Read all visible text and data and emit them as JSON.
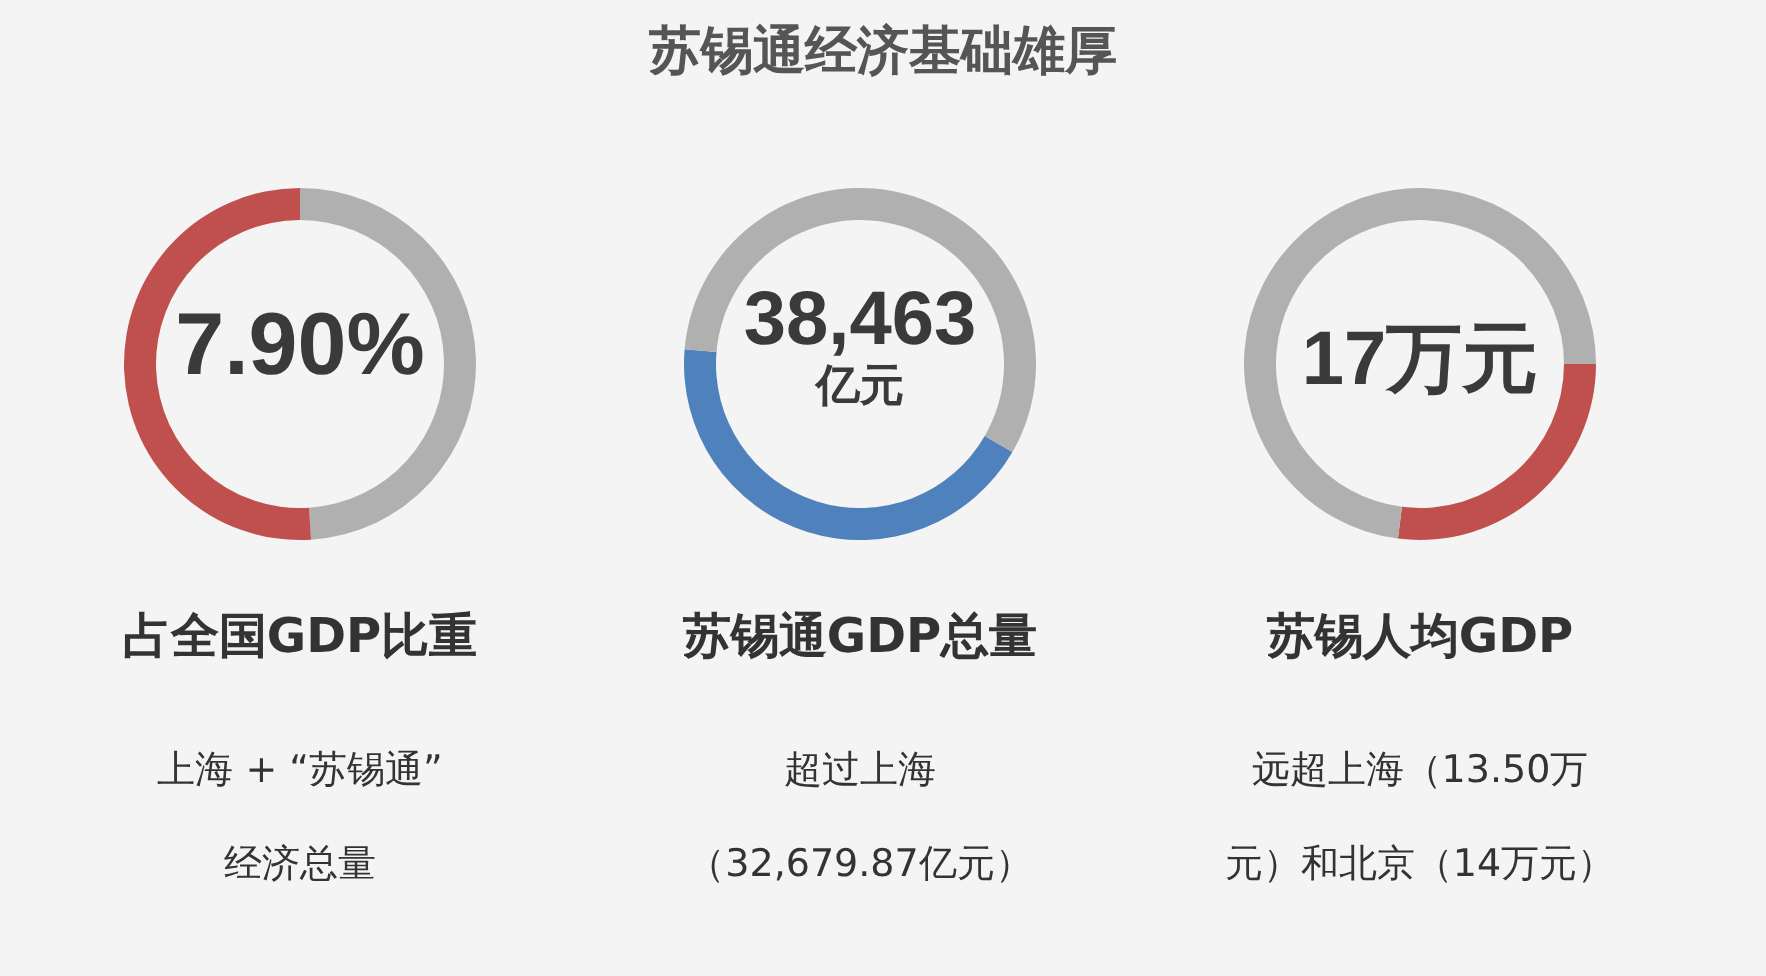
{
  "chart_data": [
    {
      "type": "other",
      "title": "苏锡通经济基础雄厚"
    },
    {
      "type": "donut",
      "subtitle": "7.90%",
      "xlabel": "占全国GDP比重",
      "categories": [
        null,
        null
      ],
      "values": [
        49,
        51
      ],
      "colors": [
        "#b0b0b0",
        "#c0504d"
      ],
      "annotations": [
        "上海 +  “苏锡通”",
        "经济总量"
      ]
    },
    {
      "type": "donut",
      "subtitle": "38,463\n亿元",
      "xlabel": "苏锡通GDP总量",
      "categories": [
        null,
        null
      ],
      "values": [
        43,
        57
      ],
      "colors": [
        "#4f81bd",
        "#b0b0b0"
      ],
      "annotations": [
        "超过上海",
        "（32,679.87亿元）"
      ]
    },
    {
      "type": "donut",
      "subtitle": "17万元",
      "xlabel": "苏锡人均GDP",
      "categories": [
        null,
        null
      ],
      "values": [
        27,
        73
      ],
      "colors": [
        "#c0504d",
        "#b0b0b0"
      ],
      "annotations": [
        "远超上海（13.50万",
        "元）和北京（14万元）"
      ]
    }
  ]
}
